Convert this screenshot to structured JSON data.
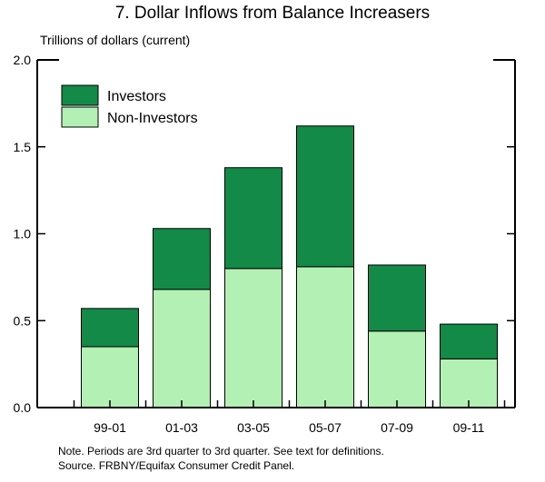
{
  "chart_data": {
    "type": "bar",
    "stacked": true,
    "title": "7. Dollar Inflows from Balance Increasers",
    "ylabel": "Trillions of dollars (current)",
    "categories": [
      "99-01",
      "01-03",
      "03-05",
      "05-07",
      "07-09",
      "09-11"
    ],
    "series": [
      {
        "name": "Non-Investors",
        "values": [
          0.35,
          0.68,
          0.8,
          0.81,
          0.44,
          0.28
        ],
        "color": "#b3f0b3"
      },
      {
        "name": "Investors",
        "values": [
          0.22,
          0.35,
          0.58,
          0.81,
          0.38,
          0.2
        ],
        "color": "#138a47"
      }
    ],
    "ylim": [
      0,
      2.0
    ],
    "yticks": [
      "0.0",
      "0.5",
      "1.0",
      "1.5",
      "2.0"
    ],
    "legend_position": "top-left",
    "grid": false
  },
  "notes": {
    "line1": "Note. Periods are 3rd quarter to 3rd quarter.  See text for definitions.",
    "line2": "Source. FRBNY/Equifax Consumer Credit Panel."
  }
}
